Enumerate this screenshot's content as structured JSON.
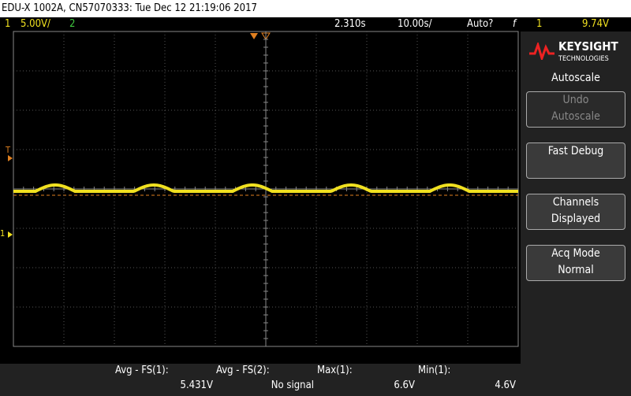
{
  "header": {
    "title": "EDU-X 1002A, CN57070333: Tue Dec 12 21:19:06 2017"
  },
  "status": {
    "ch1": "1",
    "ch1_scale": "5.00V/",
    "ch2": "2",
    "delay": "2.310s",
    "timebase": "10.00s/",
    "trigger_mode": "Auto?",
    "trigger_icon": "f",
    "trigger_source": "1",
    "trigger_level": "9.74V"
  },
  "markers": {
    "trigger": "T",
    "channel": "1"
  },
  "logo": {
    "brand": "KEYSIGHT",
    "sub": "TECHNOLOGIES"
  },
  "softkeys": {
    "menu": "Autoscale",
    "keys": [
      {
        "lines": [
          "Undo",
          "Autoscale"
        ]
      },
      {
        "lines": [
          "Fast Debug"
        ]
      },
      {
        "lines": [
          "Channels",
          "Displayed"
        ]
      },
      {
        "lines": [
          "Acq Mode",
          "Normal"
        ]
      }
    ]
  },
  "measurements": [
    {
      "label": "Avg - FS(1):",
      "value": "5.431V"
    },
    {
      "label": "Avg - FS(2):",
      "value": "No signal"
    },
    {
      "label": "Max(1):",
      "value": "6.6V"
    },
    {
      "label": "Min(1):",
      "value": "4.6V"
    }
  ]
}
